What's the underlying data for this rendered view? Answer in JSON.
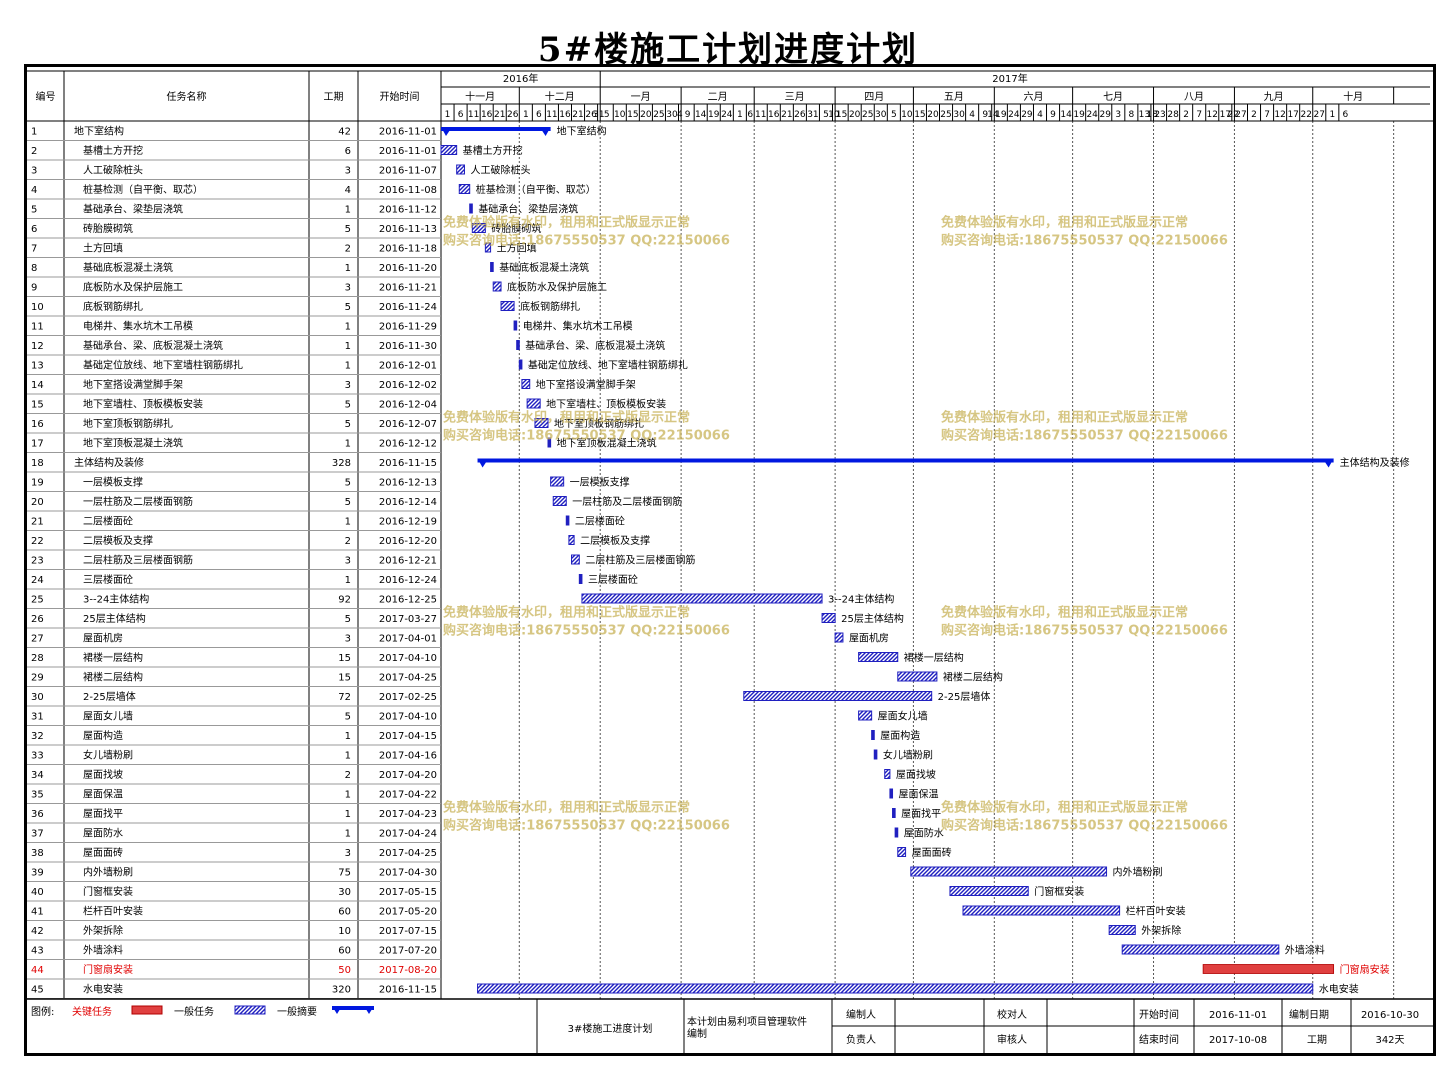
{
  "title": "5#楼施工计划进度计划",
  "chart_data": {
    "type": "gantt",
    "title": "5#楼施工计划进度计划",
    "start_date": "2016-11-01",
    "end_date": "2017-10-30",
    "columns": {
      "id": "编号",
      "name": "任务名称",
      "duration": "工期",
      "start": "开始时间"
    },
    "years": [
      {
        "label": "2016年",
        "from": "2016-11-01",
        "to": "2017-01-01"
      },
      {
        "label": "2017年",
        "from": "2017-01-01",
        "to": "2017-11-11"
      }
    ],
    "months": [
      {
        "label": "十一月",
        "from": "2016-11-01",
        "to": "2016-12-01"
      },
      {
        "label": "十二月",
        "from": "2016-12-01",
        "to": "2017-01-01"
      },
      {
        "label": "一月",
        "from": "2017-01-01",
        "to": "2017-02-01"
      },
      {
        "label": "二月",
        "from": "2017-02-01",
        "to": "2017-03-01"
      },
      {
        "label": "三月",
        "from": "2017-03-01",
        "to": "2017-04-01"
      },
      {
        "label": "四月",
        "from": "2017-04-01",
        "to": "2017-05-01"
      },
      {
        "label": "五月",
        "from": "2017-05-01",
        "to": "2017-06-01"
      },
      {
        "label": "六月",
        "from": "2017-06-01",
        "to": "2017-07-01"
      },
      {
        "label": "七月",
        "from": "2017-07-01",
        "to": "2017-08-01"
      },
      {
        "label": "八月",
        "from": "2017-08-01",
        "to": "2017-09-01"
      },
      {
        "label": "九月",
        "from": "2017-09-01",
        "to": "2017-10-01"
      },
      {
        "label": "十月",
        "from": "2017-10-01",
        "to": "2017-11-01"
      },
      {
        "label": "",
        "from": "2017-11-01",
        "to": "2017-11-11"
      }
    ],
    "day_ticks": [
      "1",
      "6",
      "11",
      "16",
      "21",
      "26",
      "1",
      "6",
      "11",
      "16",
      "21",
      "26",
      "31",
      "5",
      "10",
      "15",
      "20",
      "25",
      "30",
      "4",
      "9",
      "14",
      "19",
      "24",
      "1",
      "6",
      "11",
      "16",
      "21",
      "26",
      "31",
      "5",
      "10",
      "15",
      "20",
      "25",
      "30",
      "5",
      "10",
      "15",
      "20",
      "25",
      "30",
      "4",
      "9",
      "14",
      "19",
      "24",
      "29",
      "4",
      "9",
      "14",
      "19",
      "24",
      "29",
      "3",
      "8",
      "13",
      "18",
      "23",
      "28",
      "2",
      "7",
      "12",
      "17",
      "22",
      "27",
      "2",
      "7",
      "12",
      "17",
      "22",
      "27",
      "1",
      "6"
    ],
    "tasks": [
      {
        "id": "1",
        "name": "地下室结构",
        "duration": "42",
        "start": "2016-11-01",
        "type": "summary"
      },
      {
        "id": "2",
        "name": "基槽土方开挖",
        "duration": "6",
        "start": "2016-11-01",
        "type": "normal"
      },
      {
        "id": "3",
        "name": "人工破除桩头",
        "duration": "3",
        "start": "2016-11-07",
        "type": "normal"
      },
      {
        "id": "4",
        "name": "桩基检测（自平衡、取芯）",
        "duration": "4",
        "start": "2016-11-08",
        "type": "normal"
      },
      {
        "id": "5",
        "name": "基础承台、梁垫层浇筑",
        "duration": "1",
        "start": "2016-11-12",
        "type": "normal"
      },
      {
        "id": "6",
        "name": "砖胎膜砌筑",
        "duration": "5",
        "start": "2016-11-13",
        "type": "normal"
      },
      {
        "id": "7",
        "name": "土方回填",
        "duration": "2",
        "start": "2016-11-18",
        "type": "normal"
      },
      {
        "id": "8",
        "name": "基础底板混凝土浇筑",
        "duration": "1",
        "start": "2016-11-20",
        "type": "normal"
      },
      {
        "id": "9",
        "name": "底板防水及保护层施工",
        "duration": "3",
        "start": "2016-11-21",
        "type": "normal"
      },
      {
        "id": "10",
        "name": "底板钢筋绑扎",
        "duration": "5",
        "start": "2016-11-24",
        "type": "normal"
      },
      {
        "id": "11",
        "name": "电梯井、集水坑木工吊模",
        "duration": "1",
        "start": "2016-11-29",
        "type": "normal"
      },
      {
        "id": "12",
        "name": "基础承台、梁、底板混凝土浇筑",
        "duration": "1",
        "start": "2016-11-30",
        "type": "normal"
      },
      {
        "id": "13",
        "name": "基础定位放线、地下室墙柱钢筋绑扎",
        "duration": "1",
        "start": "2016-12-01",
        "type": "normal"
      },
      {
        "id": "14",
        "name": "地下室搭设满堂脚手架",
        "duration": "3",
        "start": "2016-12-02",
        "type": "normal"
      },
      {
        "id": "15",
        "name": "地下室墙柱、顶板模板安装",
        "duration": "5",
        "start": "2016-12-04",
        "type": "normal"
      },
      {
        "id": "16",
        "name": "地下室顶板钢筋绑扎",
        "duration": "5",
        "start": "2016-12-07",
        "type": "normal"
      },
      {
        "id": "17",
        "name": "地下室顶板混凝土浇筑",
        "duration": "1",
        "start": "2016-12-12",
        "type": "normal"
      },
      {
        "id": "18",
        "name": "主体结构及装修",
        "duration": "328",
        "start": "2016-11-15",
        "type": "summary"
      },
      {
        "id": "19",
        "name": "一层模板支撑",
        "duration": "5",
        "start": "2016-12-13",
        "type": "normal"
      },
      {
        "id": "20",
        "name": "一层柱筋及二层楼面钢筋",
        "duration": "5",
        "start": "2016-12-14",
        "type": "normal"
      },
      {
        "id": "21",
        "name": "二层楼面砼",
        "duration": "1",
        "start": "2016-12-19",
        "type": "normal"
      },
      {
        "id": "22",
        "name": "二层模板及支撑",
        "duration": "2",
        "start": "2016-12-20",
        "type": "normal"
      },
      {
        "id": "23",
        "name": "二层柱筋及三层楼面钢筋",
        "duration": "3",
        "start": "2016-12-21",
        "type": "normal"
      },
      {
        "id": "24",
        "name": "三层楼面砼",
        "duration": "1",
        "start": "2016-12-24",
        "type": "normal"
      },
      {
        "id": "25",
        "name": "3--24主体结构",
        "duration": "92",
        "start": "2016-12-25",
        "type": "normal"
      },
      {
        "id": "26",
        "name": "25层主体结构",
        "duration": "5",
        "start": "2017-03-27",
        "type": "normal"
      },
      {
        "id": "27",
        "name": "屋面机房",
        "duration": "3",
        "start": "2017-04-01",
        "type": "normal"
      },
      {
        "id": "28",
        "name": "裙楼一层结构",
        "duration": "15",
        "start": "2017-04-10",
        "type": "normal"
      },
      {
        "id": "29",
        "name": "裙楼二层结构",
        "duration": "15",
        "start": "2017-04-25",
        "type": "normal"
      },
      {
        "id": "30",
        "name": "2-25层墙体",
        "duration": "72",
        "start": "2017-02-25",
        "type": "normal"
      },
      {
        "id": "31",
        "name": "屋面女儿墙",
        "duration": "5",
        "start": "2017-04-10",
        "type": "normal"
      },
      {
        "id": "32",
        "name": "屋面构造",
        "duration": "1",
        "start": "2017-04-15",
        "type": "normal"
      },
      {
        "id": "33",
        "name": "女儿墙粉刷",
        "duration": "1",
        "start": "2017-04-16",
        "type": "normal"
      },
      {
        "id": "34",
        "name": "屋面找坡",
        "duration": "2",
        "start": "2017-04-20",
        "type": "normal"
      },
      {
        "id": "35",
        "name": "屋面保温",
        "duration": "1",
        "start": "2017-04-22",
        "type": "normal"
      },
      {
        "id": "36",
        "name": "屋面找平",
        "duration": "1",
        "start": "2017-04-23",
        "type": "normal"
      },
      {
        "id": "37",
        "name": "屋面防水",
        "duration": "1",
        "start": "2017-04-24",
        "type": "normal"
      },
      {
        "id": "38",
        "name": "屋面面砖",
        "duration": "3",
        "start": "2017-04-25",
        "type": "normal"
      },
      {
        "id": "39",
        "name": "内外墙粉刷",
        "duration": "75",
        "start": "2017-04-30",
        "type": "normal"
      },
      {
        "id": "40",
        "name": "门窗框安装",
        "duration": "30",
        "start": "2017-05-15",
        "type": "normal"
      },
      {
        "id": "41",
        "name": "栏杆百叶安装",
        "duration": "60",
        "start": "2017-05-20",
        "type": "normal"
      },
      {
        "id": "42",
        "name": "外架拆除",
        "duration": "10",
        "start": "2017-07-15",
        "type": "normal"
      },
      {
        "id": "43",
        "name": "外墙涂料",
        "duration": "60",
        "start": "2017-07-20",
        "type": "normal"
      },
      {
        "id": "44",
        "name": "门窗扇安装",
        "duration": "50",
        "start": "2017-08-20",
        "type": "critical"
      },
      {
        "id": "45",
        "name": "水电安装",
        "duration": "320",
        "start": "2016-11-15",
        "type": "normal"
      }
    ],
    "legend": {
      "label": "图例:",
      "critical": "关键任务",
      "normal": "一般任务",
      "summary": "一般摘要"
    },
    "colors": {
      "critical": "#e04040",
      "normal": "#5b5bd6",
      "summary": "#0018e0",
      "critical_text": "#e00000"
    }
  },
  "watermark": {
    "line1": "免费体验版有水印，租用和正式版显示正常",
    "line2": "购买咨询电话:18675550537 QQ:22150066"
  },
  "footer": {
    "project": "3#楼施工进度计划",
    "note": "本计划由易利项目管理软件编制",
    "editor_label": "编制人",
    "checker_label": "校对人",
    "owner_label": "负责人",
    "reviewer_label": "审核人",
    "start_label": "开始时间",
    "start_value": "2016-11-01",
    "end_label": "结束时间",
    "end_value": "2017-10-08",
    "made_label": "编制日期",
    "made_value": "2016-10-30",
    "period_label": "工期",
    "period_value": "342天"
  }
}
